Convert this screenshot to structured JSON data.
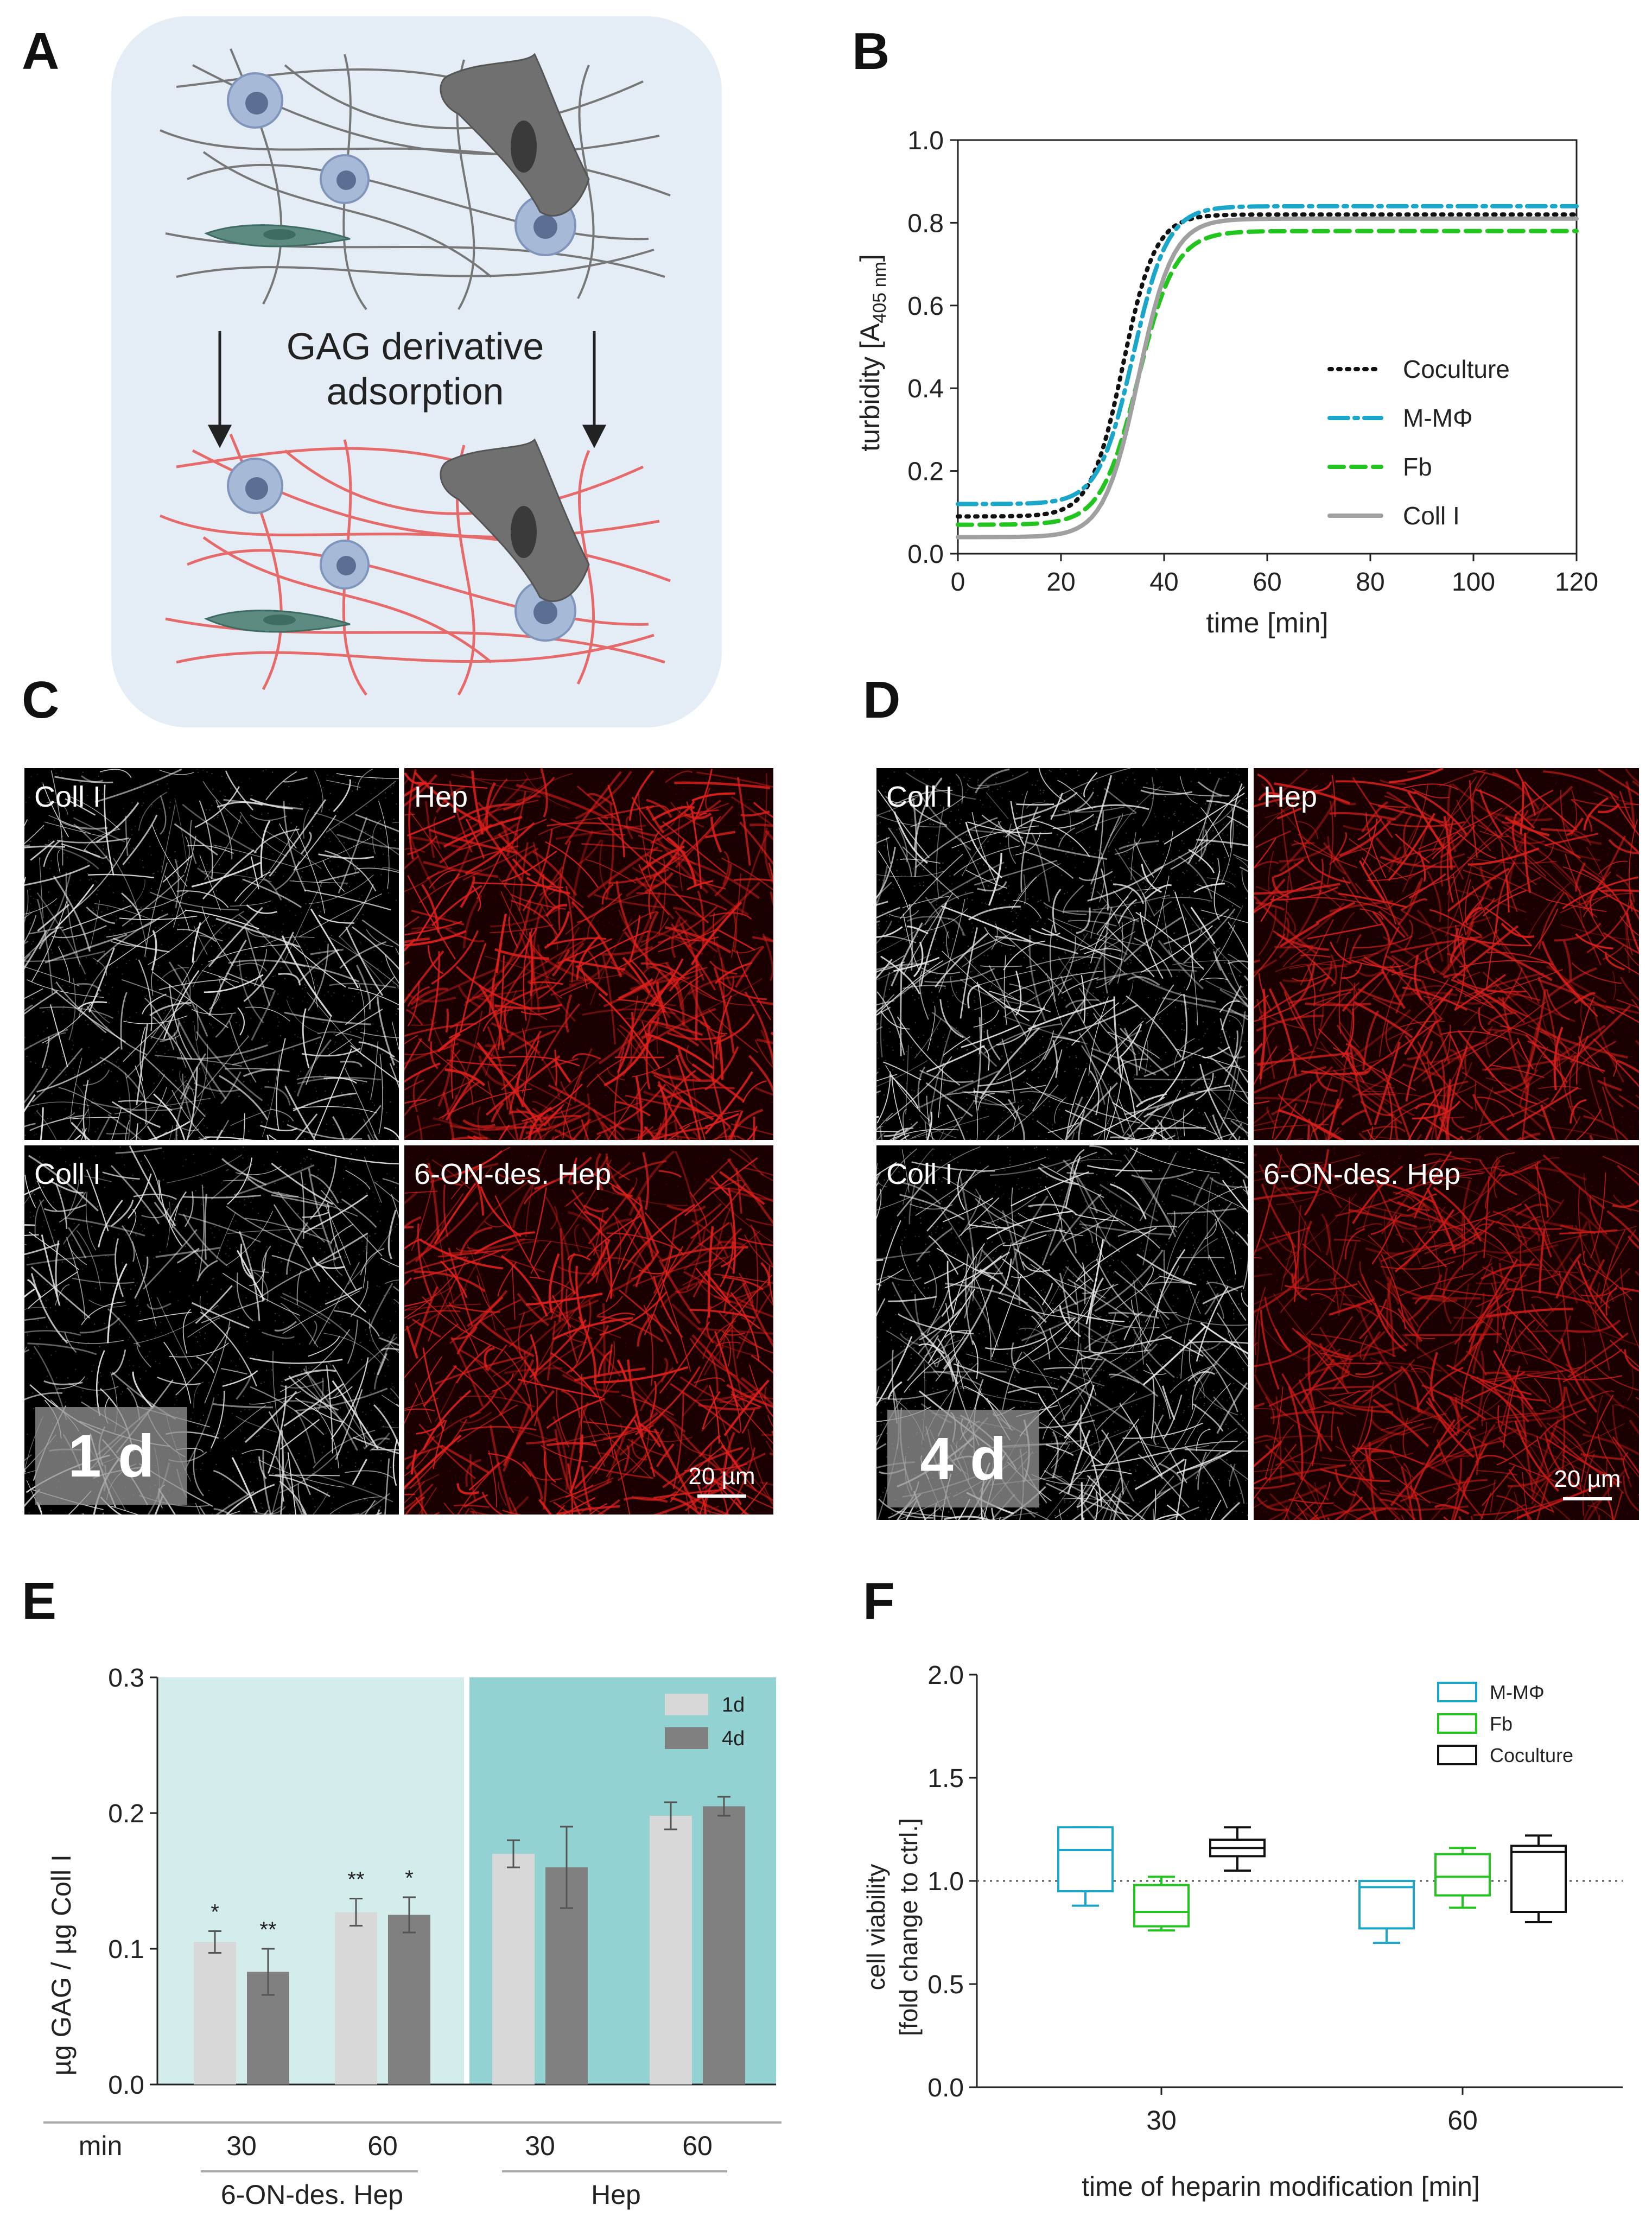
{
  "panels": {
    "a": {
      "letter": "A",
      "caption_line1": "GAG derivative",
      "caption_line2": "adsorption"
    },
    "b": {
      "letter": "B"
    },
    "c": {
      "letter": "C",
      "day": "1 d",
      "scale": "20 µm"
    },
    "d": {
      "letter": "D",
      "day": "4 d",
      "scale": "20 µm"
    },
    "e": {
      "letter": "E"
    },
    "f": {
      "letter": "F"
    }
  },
  "micrographs": {
    "coll": "Coll I",
    "hep": "Hep",
    "des_hep": "6-ON-des. Hep"
  },
  "colors": {
    "red_fiber": "#e0201c",
    "panel_a_bg": "#e4edf6",
    "e_light_bg": "#d3ecec",
    "e_dark_bg": "#92d2d2",
    "bar_1d": "#d8d8d8",
    "bar_4d": "#808080",
    "mm": "#1aa6c9",
    "fb": "#22c41e",
    "cocult": "#111111",
    "coll_line": "#a0a0a0"
  },
  "chart_data": [
    {
      "id": "B",
      "type": "line",
      "xlabel": "time [min]",
      "ylabel": "turbidity [A",
      "ylabel_sub": "405 nm",
      "ylabel_close": "]",
      "xlim": [
        0,
        120
      ],
      "ylim": [
        0,
        1.0
      ],
      "xticks": [
        0,
        20,
        40,
        60,
        80,
        100,
        120
      ],
      "yticks": [
        0.0,
        0.2,
        0.4,
        0.6,
        0.8,
        1.0
      ],
      "series": [
        {
          "name": "Coculture",
          "base": 0.09,
          "plateau": 0.82,
          "mid": 32,
          "k": 0.32,
          "style": "dotted",
          "color": "#111111"
        },
        {
          "name": "M-MΦ",
          "base": 0.12,
          "plateau": 0.84,
          "mid": 34,
          "k": 0.3,
          "style": "dashdot",
          "color": "#1aa6c9"
        },
        {
          "name": "Fb",
          "base": 0.07,
          "plateau": 0.78,
          "mid": 35,
          "k": 0.28,
          "style": "dashed",
          "color": "#22c41e"
        },
        {
          "name": "Coll I",
          "base": 0.04,
          "plateau": 0.81,
          "mid": 35,
          "k": 0.3,
          "style": "solid",
          "color": "#a0a0a0"
        }
      ]
    },
    {
      "id": "E",
      "type": "bar",
      "ylabel": "µg GAG / µg Coll I",
      "ylim": [
        0,
        0.3
      ],
      "yticks": [
        0.0,
        0.1,
        0.2,
        0.3
      ],
      "x_row_label": "min",
      "groups": [
        {
          "min": "30",
          "bars": [
            {
              "series": "1d",
              "value": 0.105,
              "err": 0.008,
              "sig": "*"
            },
            {
              "series": "4d",
              "value": 0.083,
              "err": 0.017,
              "sig": "**"
            }
          ]
        },
        {
          "min": "60",
          "bars": [
            {
              "series": "1d",
              "value": 0.127,
              "err": 0.01,
              "sig": "**"
            },
            {
              "series": "4d",
              "value": 0.125,
              "err": 0.013,
              "sig": "*"
            }
          ]
        },
        {
          "min": "30",
          "bars": [
            {
              "series": "1d",
              "value": 0.17,
              "err": 0.01,
              "sig": ""
            },
            {
              "series": "4d",
              "value": 0.16,
              "err": 0.03,
              "sig": ""
            }
          ]
        },
        {
          "min": "60",
          "bars": [
            {
              "series": "1d",
              "value": 0.198,
              "err": 0.01,
              "sig": ""
            },
            {
              "series": "4d",
              "value": 0.205,
              "err": 0.007,
              "sig": ""
            }
          ]
        }
      ],
      "treatments": [
        "6-ON-des. Hep",
        "Hep"
      ],
      "legend": [
        "1d",
        "4d"
      ]
    },
    {
      "id": "F",
      "type": "box",
      "ylabel_line1": "cell viability",
      "ylabel_line2": "[fold change to ctrl.]",
      "xlabel": "time of heparin modification [min]",
      "ylim": [
        0,
        2.0
      ],
      "yticks": [
        "0.0",
        "0.5",
        "1.0",
        "1.5",
        "2.0"
      ],
      "categories": [
        "30",
        "60"
      ],
      "reference_line": 1.0,
      "series": [
        {
          "name": "M-MΦ",
          "color": "#1aa6c9",
          "boxes": [
            {
              "min": 0.88,
              "q1": 0.95,
              "median": 1.15,
              "q3": 1.26,
              "max": 1.26
            },
            {
              "min": 0.7,
              "q1": 0.77,
              "median": 0.97,
              "q3": 1.0,
              "max": 1.0
            }
          ]
        },
        {
          "name": "Fb",
          "color": "#22c41e",
          "boxes": [
            {
              "min": 0.76,
              "q1": 0.78,
              "median": 0.85,
              "q3": 0.98,
              "max": 1.02
            },
            {
              "min": 0.87,
              "q1": 0.93,
              "median": 1.02,
              "q3": 1.13,
              "max": 1.16
            }
          ]
        },
        {
          "name": "Coculture",
          "color": "#111111",
          "boxes": [
            {
              "min": 1.05,
              "q1": 1.12,
              "median": 1.16,
              "q3": 1.2,
              "max": 1.26
            },
            {
              "min": 0.8,
              "q1": 0.85,
              "median": 1.14,
              "q3": 1.17,
              "max": 1.22
            }
          ]
        }
      ]
    }
  ]
}
